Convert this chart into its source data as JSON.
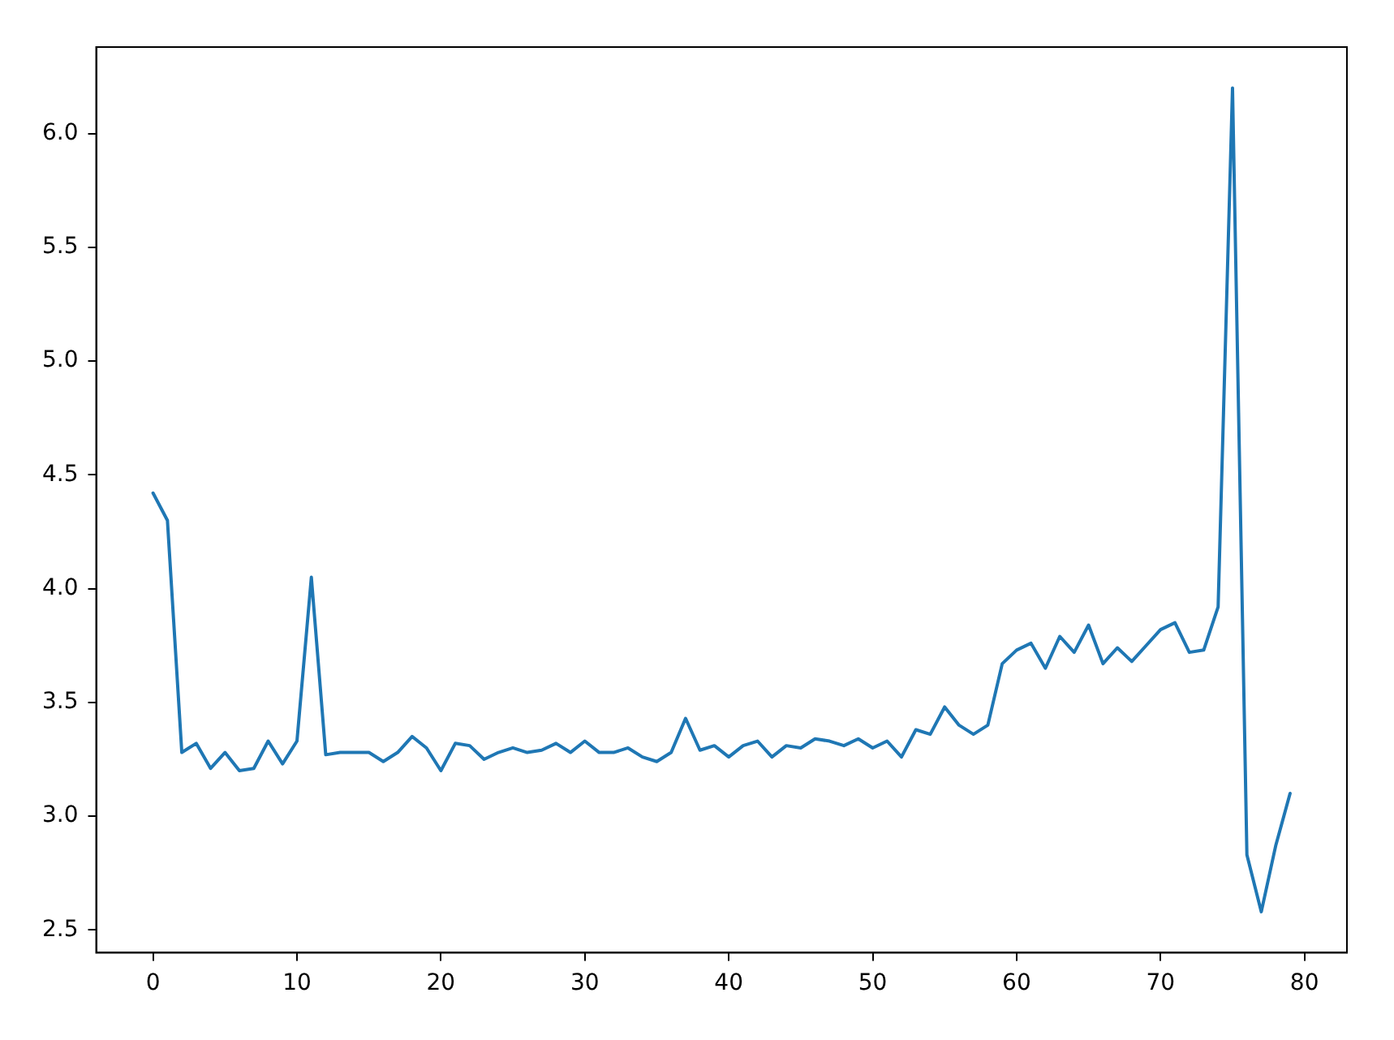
{
  "chart_data": {
    "type": "line",
    "x": [
      0,
      1,
      2,
      3,
      4,
      5,
      6,
      7,
      8,
      9,
      10,
      11,
      12,
      13,
      14,
      15,
      16,
      17,
      18,
      19,
      20,
      21,
      22,
      23,
      24,
      25,
      26,
      27,
      28,
      29,
      30,
      31,
      32,
      33,
      34,
      35,
      36,
      37,
      38,
      39,
      40,
      41,
      42,
      43,
      44,
      45,
      46,
      47,
      48,
      49,
      50,
      51,
      52,
      53,
      54,
      55,
      56,
      57,
      58,
      59,
      60,
      61,
      62,
      63,
      64,
      65,
      66,
      67,
      68,
      69,
      70,
      71,
      72,
      73,
      74,
      75,
      76,
      77,
      78,
      79
    ],
    "series": [
      {
        "color": "#1f77b4",
        "values": [
          4.42,
          4.3,
          3.28,
          3.32,
          3.21,
          3.28,
          3.2,
          3.21,
          3.33,
          3.23,
          3.33,
          4.05,
          3.27,
          3.28,
          3.28,
          3.28,
          3.24,
          3.28,
          3.35,
          3.3,
          3.2,
          3.32,
          3.31,
          3.25,
          3.28,
          3.3,
          3.28,
          3.29,
          3.32,
          3.28,
          3.33,
          3.28,
          3.28,
          3.3,
          3.26,
          3.24,
          3.28,
          3.43,
          3.29,
          3.31,
          3.26,
          3.31,
          3.33,
          3.26,
          3.31,
          3.3,
          3.34,
          3.33,
          3.31,
          3.34,
          3.3,
          3.33,
          3.26,
          3.38,
          3.36,
          3.48,
          3.4,
          3.36,
          3.4,
          3.67,
          3.73,
          3.76,
          3.65,
          3.79,
          3.72,
          3.84,
          3.67,
          3.74,
          3.68,
          3.75,
          3.82,
          3.85,
          3.72,
          3.73,
          3.92,
          6.2,
          2.83,
          2.58,
          2.87,
          3.1
        ]
      }
    ],
    "xlim": [
      -3.95,
      82.95
    ],
    "ylim": [
      2.4,
      6.38
    ],
    "xticks": [
      0,
      10,
      20,
      30,
      40,
      50,
      60,
      70,
      80
    ],
    "yticks": [
      {
        "value": 2.5,
        "label": "2.5"
      },
      {
        "value": 3,
        "label": "3.0"
      },
      {
        "value": 3.5,
        "label": "3.5"
      },
      {
        "value": 4,
        "label": "4.0"
      },
      {
        "value": 4.5,
        "label": "4.5"
      },
      {
        "value": 5,
        "label": "5.0"
      },
      {
        "value": 5.5,
        "label": "5.5"
      },
      {
        "value": 6,
        "label": "6.0"
      }
    ],
    "grid": false,
    "legend": false,
    "marker": "none",
    "line_style": "solid"
  }
}
